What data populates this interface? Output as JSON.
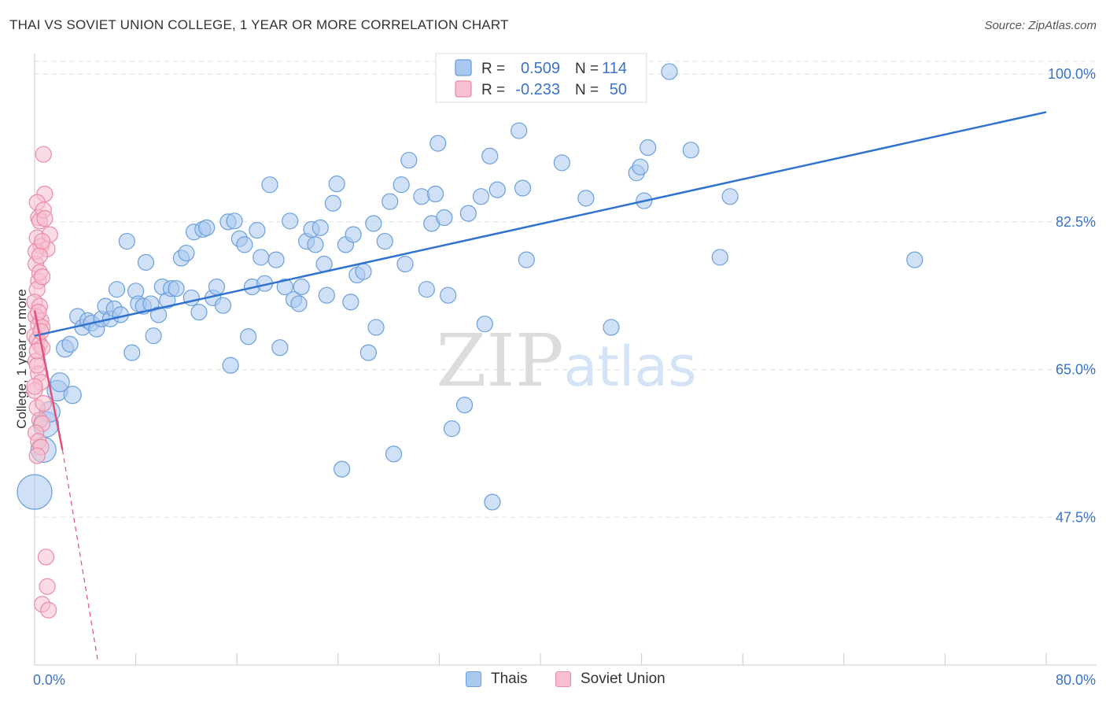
{
  "chart_data": {
    "type": "scatter",
    "title": "THAI VS SOVIET UNION COLLEGE, 1 YEAR OR MORE CORRELATION CHART",
    "source": "Source: ZipAtlas.com",
    "xlabel": "",
    "ylabel": "College, 1 year or more",
    "xlim": [
      0,
      80
    ],
    "ylim": [
      30,
      103
    ],
    "x_tick_labels": [
      "0.0%",
      "80.0%"
    ],
    "y_ticks": [
      47.5,
      65.0,
      82.5,
      100.0
    ],
    "y_tick_labels": [
      "47.5%",
      "65.0%",
      "82.5%",
      "100.0%"
    ],
    "grid": true,
    "watermark": "ZIPatlas",
    "legend_stats": [
      {
        "r_label": "R =",
        "r_value": "0.509",
        "n_label": "N =",
        "n_value": "114"
      },
      {
        "r_label": "R =",
        "r_value": "-0.233",
        "n_label": "N =",
        "n_value": "50"
      }
    ],
    "colors": {
      "thais_fill": "#a9c8f0",
      "thais_stroke": "#6a9fdc",
      "thais_line": "#2f73cf",
      "soviet_fill": "#f8bfd0",
      "soviet_stroke": "#ea8aa7",
      "soviet_line": "#e0507c",
      "axis_text": "#3a72c8",
      "grid": "#e0e0e0"
    },
    "series": [
      {
        "name": "Thais",
        "trend": {
          "x0": 0,
          "y0": 69.0,
          "x1": 80,
          "y1": 95.5
        },
        "points": [
          [
            0.0,
            50.5,
            20
          ],
          [
            0.7,
            55.5,
            14
          ],
          [
            0.9,
            58.5,
            14
          ],
          [
            1.2,
            60.0,
            11
          ],
          [
            1.8,
            62.5,
            11
          ],
          [
            2.0,
            63.5,
            10
          ],
          [
            3.0,
            62.0,
            9
          ],
          [
            2.4,
            67.5,
            9
          ],
          [
            2.8,
            68.0,
            8
          ],
          [
            3.4,
            71.3,
            8
          ],
          [
            3.8,
            70.0,
            8
          ],
          [
            4.2,
            70.8,
            8
          ],
          [
            4.5,
            70.5,
            8
          ],
          [
            4.9,
            69.8,
            8
          ],
          [
            5.3,
            71.0,
            8
          ],
          [
            5.6,
            72.5,
            8
          ],
          [
            6.0,
            71.0,
            8
          ],
          [
            6.3,
            72.2,
            8
          ],
          [
            6.8,
            71.5,
            8
          ],
          [
            6.5,
            74.5,
            8
          ],
          [
            7.7,
            67.0,
            8
          ],
          [
            8.0,
            74.3,
            8
          ],
          [
            8.2,
            72.8,
            8
          ],
          [
            8.6,
            72.5,
            8
          ],
          [
            8.8,
            77.7,
            8
          ],
          [
            7.3,
            80.2,
            8
          ],
          [
            9.2,
            72.8,
            8
          ],
          [
            9.4,
            69.0,
            8
          ],
          [
            9.8,
            71.5,
            8
          ],
          [
            10.1,
            74.8,
            8
          ],
          [
            10.5,
            73.2,
            8
          ],
          [
            10.8,
            74.6,
            8
          ],
          [
            11.2,
            74.6,
            8
          ],
          [
            11.6,
            78.2,
            8
          ],
          [
            12.0,
            78.8,
            8
          ],
          [
            12.4,
            73.5,
            8
          ],
          [
            12.6,
            81.3,
            8
          ],
          [
            13.0,
            71.8,
            8
          ],
          [
            13.3,
            81.6,
            8
          ],
          [
            13.6,
            81.8,
            8
          ],
          [
            14.1,
            73.5,
            8
          ],
          [
            14.4,
            74.8,
            8
          ],
          [
            14.9,
            72.6,
            8
          ],
          [
            15.3,
            82.5,
            8
          ],
          [
            15.5,
            65.5,
            8
          ],
          [
            15.8,
            82.6,
            8
          ],
          [
            16.2,
            80.5,
            8
          ],
          [
            16.6,
            79.8,
            8
          ],
          [
            16.9,
            68.9,
            8
          ],
          [
            17.2,
            74.8,
            8
          ],
          [
            17.6,
            81.5,
            8
          ],
          [
            17.9,
            78.3,
            8
          ],
          [
            18.2,
            75.2,
            8
          ],
          [
            18.6,
            86.9,
            8
          ],
          [
            19.1,
            78.0,
            8
          ],
          [
            19.4,
            67.6,
            8
          ],
          [
            19.8,
            74.8,
            8
          ],
          [
            20.2,
            82.6,
            8
          ],
          [
            20.5,
            73.3,
            8
          ],
          [
            20.9,
            72.8,
            8
          ],
          [
            21.1,
            74.8,
            8
          ],
          [
            21.5,
            80.2,
            8
          ],
          [
            21.9,
            81.6,
            8
          ],
          [
            22.2,
            79.8,
            8
          ],
          [
            22.6,
            81.8,
            8
          ],
          [
            22.9,
            77.5,
            8
          ],
          [
            23.1,
            73.8,
            8
          ],
          [
            23.6,
            84.7,
            8
          ],
          [
            23.9,
            87.0,
            8
          ],
          [
            24.3,
            53.2,
            8
          ],
          [
            24.6,
            79.8,
            8
          ],
          [
            25.0,
            73.0,
            8
          ],
          [
            25.2,
            81.0,
            8
          ],
          [
            25.5,
            76.2,
            8
          ],
          [
            26.0,
            76.6,
            8
          ],
          [
            26.4,
            67.0,
            8
          ],
          [
            26.8,
            82.3,
            8
          ],
          [
            27.0,
            70.0,
            8
          ],
          [
            27.7,
            80.2,
            8
          ],
          [
            28.1,
            84.9,
            8
          ],
          [
            28.4,
            55.0,
            8
          ],
          [
            29.0,
            86.9,
            8
          ],
          [
            29.3,
            77.5,
            8
          ],
          [
            29.6,
            89.8,
            8
          ],
          [
            30.6,
            85.5,
            8
          ],
          [
            31.0,
            74.5,
            8
          ],
          [
            31.4,
            82.3,
            8
          ],
          [
            31.7,
            85.8,
            8
          ],
          [
            31.9,
            91.8,
            8
          ],
          [
            32.4,
            83.0,
            8
          ],
          [
            32.7,
            73.8,
            8
          ],
          [
            33.0,
            58.0,
            8
          ],
          [
            34.0,
            60.8,
            8
          ],
          [
            34.3,
            83.5,
            8
          ],
          [
            35.3,
            85.5,
            8
          ],
          [
            35.6,
            70.4,
            8
          ],
          [
            36.0,
            90.3,
            8
          ],
          [
            36.2,
            49.3,
            8
          ],
          [
            36.6,
            86.3,
            8
          ],
          [
            38.3,
            93.3,
            8
          ],
          [
            38.6,
            86.5,
            8
          ],
          [
            38.9,
            78.0,
            8
          ],
          [
            41.7,
            89.5,
            8
          ],
          [
            43.6,
            85.3,
            8
          ],
          [
            45.6,
            70.0,
            8
          ],
          [
            47.6,
            88.3,
            8
          ],
          [
            47.9,
            89.0,
            8
          ],
          [
            48.2,
            85.0,
            8
          ],
          [
            48.5,
            91.3,
            8
          ],
          [
            50.2,
            100.3,
            8
          ],
          [
            51.9,
            91.0,
            8
          ],
          [
            54.2,
            78.3,
            8
          ],
          [
            55.0,
            85.5,
            8
          ],
          [
            69.6,
            78.0,
            8
          ]
        ]
      },
      {
        "name": "Soviet Union",
        "trend": {
          "x0": 0,
          "y0": 72.0,
          "x1": 2.2,
          "y1": 55.5,
          "dash_to_x": 5.0,
          "dash_to_y": 30.5
        },
        "points": [
          [
            0.6,
            37.2,
            8
          ],
          [
            0.7,
            90.5,
            8
          ],
          [
            0.8,
            85.8,
            8
          ],
          [
            0.9,
            42.8,
            8
          ],
          [
            1.0,
            39.3,
            8
          ],
          [
            1.1,
            36.5,
            8
          ],
          [
            0.2,
            84.8,
            8
          ],
          [
            0.3,
            83.0,
            8
          ],
          [
            0.4,
            82.6,
            8
          ],
          [
            0.2,
            80.6,
            8
          ],
          [
            0.5,
            79.6,
            8
          ],
          [
            1.0,
            79.3,
            8
          ],
          [
            1.2,
            81.0,
            8
          ],
          [
            0.1,
            77.5,
            8
          ],
          [
            0.3,
            75.5,
            8
          ],
          [
            0.2,
            74.5,
            8
          ],
          [
            0.0,
            73.0,
            8
          ],
          [
            0.4,
            72.5,
            8
          ],
          [
            0.1,
            71.3,
            8
          ],
          [
            0.5,
            70.8,
            8
          ],
          [
            0.3,
            70.3,
            8
          ],
          [
            0.6,
            70.0,
            8
          ],
          [
            0.0,
            69.0,
            8
          ],
          [
            0.2,
            68.5,
            8
          ],
          [
            0.4,
            68.0,
            8
          ],
          [
            0.6,
            67.6,
            8
          ],
          [
            0.1,
            66.0,
            8
          ],
          [
            0.3,
            64.5,
            8
          ],
          [
            0.5,
            63.5,
            8
          ],
          [
            0.0,
            62.5,
            8
          ],
          [
            0.2,
            60.5,
            8
          ],
          [
            0.4,
            59.0,
            8
          ],
          [
            0.6,
            58.6,
            8
          ],
          [
            0.1,
            57.5,
            8
          ],
          [
            0.3,
            56.5,
            8
          ],
          [
            0.5,
            55.8,
            8
          ],
          [
            0.2,
            54.8,
            8
          ],
          [
            0.7,
            83.9,
            8
          ],
          [
            0.8,
            82.9,
            8
          ],
          [
            0.4,
            76.5,
            8
          ],
          [
            0.6,
            76.0,
            8
          ],
          [
            0.1,
            79.0,
            8
          ],
          [
            0.3,
            71.8,
            8
          ],
          [
            0.5,
            69.5,
            8
          ],
          [
            0.2,
            65.5,
            8
          ],
          [
            0.7,
            61.0,
            8
          ],
          [
            0.0,
            63.0,
            8
          ],
          [
            0.4,
            78.5,
            8
          ],
          [
            0.6,
            80.2,
            8
          ],
          [
            0.2,
            67.2,
            8
          ]
        ]
      }
    ]
  }
}
